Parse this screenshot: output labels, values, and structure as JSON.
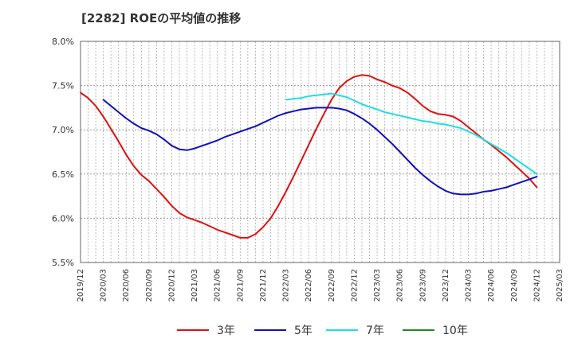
{
  "title": "[2282]  ROEの平均値の推移",
  "chart_data": {
    "type": "line",
    "title": "[2282]  ROEの平均値の推移",
    "ylim": [
      5.5,
      8.0
    ],
    "yticks": [
      5.5,
      6.0,
      6.5,
      7.0,
      7.5,
      8.0
    ],
    "ytick_labels": [
      "5.5%",
      "6.0%",
      "6.5%",
      "7.0%",
      "7.5%",
      "8.0%"
    ],
    "xlim": [
      "2019/12",
      "2025/03"
    ],
    "xtick_labels": [
      "2019/12",
      "2020/03",
      "2020/06",
      "2020/09",
      "2020/12",
      "2021/03",
      "2021/06",
      "2021/09",
      "2021/12",
      "2022/03",
      "2022/06",
      "2022/09",
      "2022/12",
      "2023/03",
      "2023/06",
      "2023/09",
      "2023/12",
      "2024/03",
      "2024/06",
      "2024/09",
      "2024/12",
      "2025/03"
    ],
    "grid": true,
    "legend_position": "bottom",
    "series": [
      {
        "name": "3年",
        "color": "#dd1111",
        "x": [
          "2019/12",
          "2020/01",
          "2020/02",
          "2020/03",
          "2020/04",
          "2020/05",
          "2020/06",
          "2020/07",
          "2020/08",
          "2020/09",
          "2020/10",
          "2020/11",
          "2020/12",
          "2021/01",
          "2021/02",
          "2021/03",
          "2021/04",
          "2021/05",
          "2021/06",
          "2021/07",
          "2021/08",
          "2021/09",
          "2021/10",
          "2021/11",
          "2021/12",
          "2022/01",
          "2022/02",
          "2022/03",
          "2022/04",
          "2022/05",
          "2022/06",
          "2022/07",
          "2022/08",
          "2022/09",
          "2022/10",
          "2022/11",
          "2022/12",
          "2023/01",
          "2023/02",
          "2023/03",
          "2023/04",
          "2023/05",
          "2023/06",
          "2023/07",
          "2023/08",
          "2023/09",
          "2023/10",
          "2023/11",
          "2023/12",
          "2024/01",
          "2024/02",
          "2024/03",
          "2024/04",
          "2024/05",
          "2024/06",
          "2024/07",
          "2024/08",
          "2024/09",
          "2024/10",
          "2024/11",
          "2024/12"
        ],
        "values": [
          7.42,
          7.36,
          7.27,
          7.15,
          7.01,
          6.87,
          6.72,
          6.59,
          6.49,
          6.42,
          6.33,
          6.24,
          6.14,
          6.06,
          6.01,
          5.98,
          5.95,
          5.91,
          5.87,
          5.84,
          5.81,
          5.78,
          5.78,
          5.82,
          5.9,
          6.0,
          6.14,
          6.3,
          6.47,
          6.65,
          6.83,
          7.01,
          7.18,
          7.34,
          7.47,
          7.55,
          7.6,
          7.62,
          7.61,
          7.57,
          7.54,
          7.5,
          7.47,
          7.42,
          7.35,
          7.27,
          7.21,
          7.18,
          7.17,
          7.15,
          7.1,
          7.03,
          6.96,
          6.89,
          6.83,
          6.76,
          6.69,
          6.61,
          6.53,
          6.45,
          6.35
        ]
      },
      {
        "name": "5年",
        "color": "#1111bb",
        "x": [
          "2020/03",
          "2020/04",
          "2020/05",
          "2020/06",
          "2020/07",
          "2020/08",
          "2020/09",
          "2020/10",
          "2020/11",
          "2020/12",
          "2021/01",
          "2021/02",
          "2021/03",
          "2021/04",
          "2021/05",
          "2021/06",
          "2021/07",
          "2021/08",
          "2021/09",
          "2021/10",
          "2021/11",
          "2021/12",
          "2022/01",
          "2022/02",
          "2022/03",
          "2022/04",
          "2022/05",
          "2022/06",
          "2022/07",
          "2022/08",
          "2022/09",
          "2022/10",
          "2022/11",
          "2022/12",
          "2023/01",
          "2023/02",
          "2023/03",
          "2023/04",
          "2023/05",
          "2023/06",
          "2023/07",
          "2023/08",
          "2023/09",
          "2023/10",
          "2023/11",
          "2023/12",
          "2024/01",
          "2024/02",
          "2024/03",
          "2024/04",
          "2024/05",
          "2024/06",
          "2024/07",
          "2024/08",
          "2024/09",
          "2024/10",
          "2024/11",
          "2024/12"
        ],
        "values": [
          7.34,
          7.27,
          7.2,
          7.13,
          7.07,
          7.02,
          6.99,
          6.95,
          6.89,
          6.82,
          6.78,
          6.77,
          6.79,
          6.82,
          6.85,
          6.88,
          6.92,
          6.95,
          6.98,
          7.01,
          7.04,
          7.08,
          7.12,
          7.16,
          7.19,
          7.21,
          7.23,
          7.24,
          7.25,
          7.25,
          7.25,
          7.24,
          7.22,
          7.18,
          7.13,
          7.07,
          7.0,
          6.92,
          6.84,
          6.75,
          6.66,
          6.57,
          6.49,
          6.42,
          6.36,
          6.31,
          6.28,
          6.27,
          6.27,
          6.28,
          6.3,
          6.31,
          6.33,
          6.35,
          6.38,
          6.41,
          6.44,
          6.47
        ]
      },
      {
        "name": "7年",
        "color": "#22dddd",
        "x": [
          "2022/03",
          "2022/04",
          "2022/05",
          "2022/06",
          "2022/07",
          "2022/08",
          "2022/09",
          "2022/10",
          "2022/11",
          "2022/12",
          "2023/01",
          "2023/02",
          "2023/03",
          "2023/04",
          "2023/05",
          "2023/06",
          "2023/07",
          "2023/08",
          "2023/09",
          "2023/10",
          "2023/11",
          "2023/12",
          "2024/01",
          "2024/02",
          "2024/03",
          "2024/04",
          "2024/05",
          "2024/06",
          "2024/07",
          "2024/08",
          "2024/09",
          "2024/10",
          "2024/11",
          "2024/12"
        ],
        "values": [
          7.34,
          7.35,
          7.36,
          7.38,
          7.39,
          7.4,
          7.41,
          7.39,
          7.37,
          7.33,
          7.29,
          7.26,
          7.23,
          7.2,
          7.18,
          7.16,
          7.14,
          7.12,
          7.1,
          7.09,
          7.07,
          7.06,
          7.04,
          7.02,
          6.98,
          6.94,
          6.89,
          6.84,
          6.79,
          6.74,
          6.68,
          6.62,
          6.56,
          6.5
        ]
      },
      {
        "name": "10年",
        "color": "#228822",
        "x": [],
        "values": []
      }
    ]
  }
}
